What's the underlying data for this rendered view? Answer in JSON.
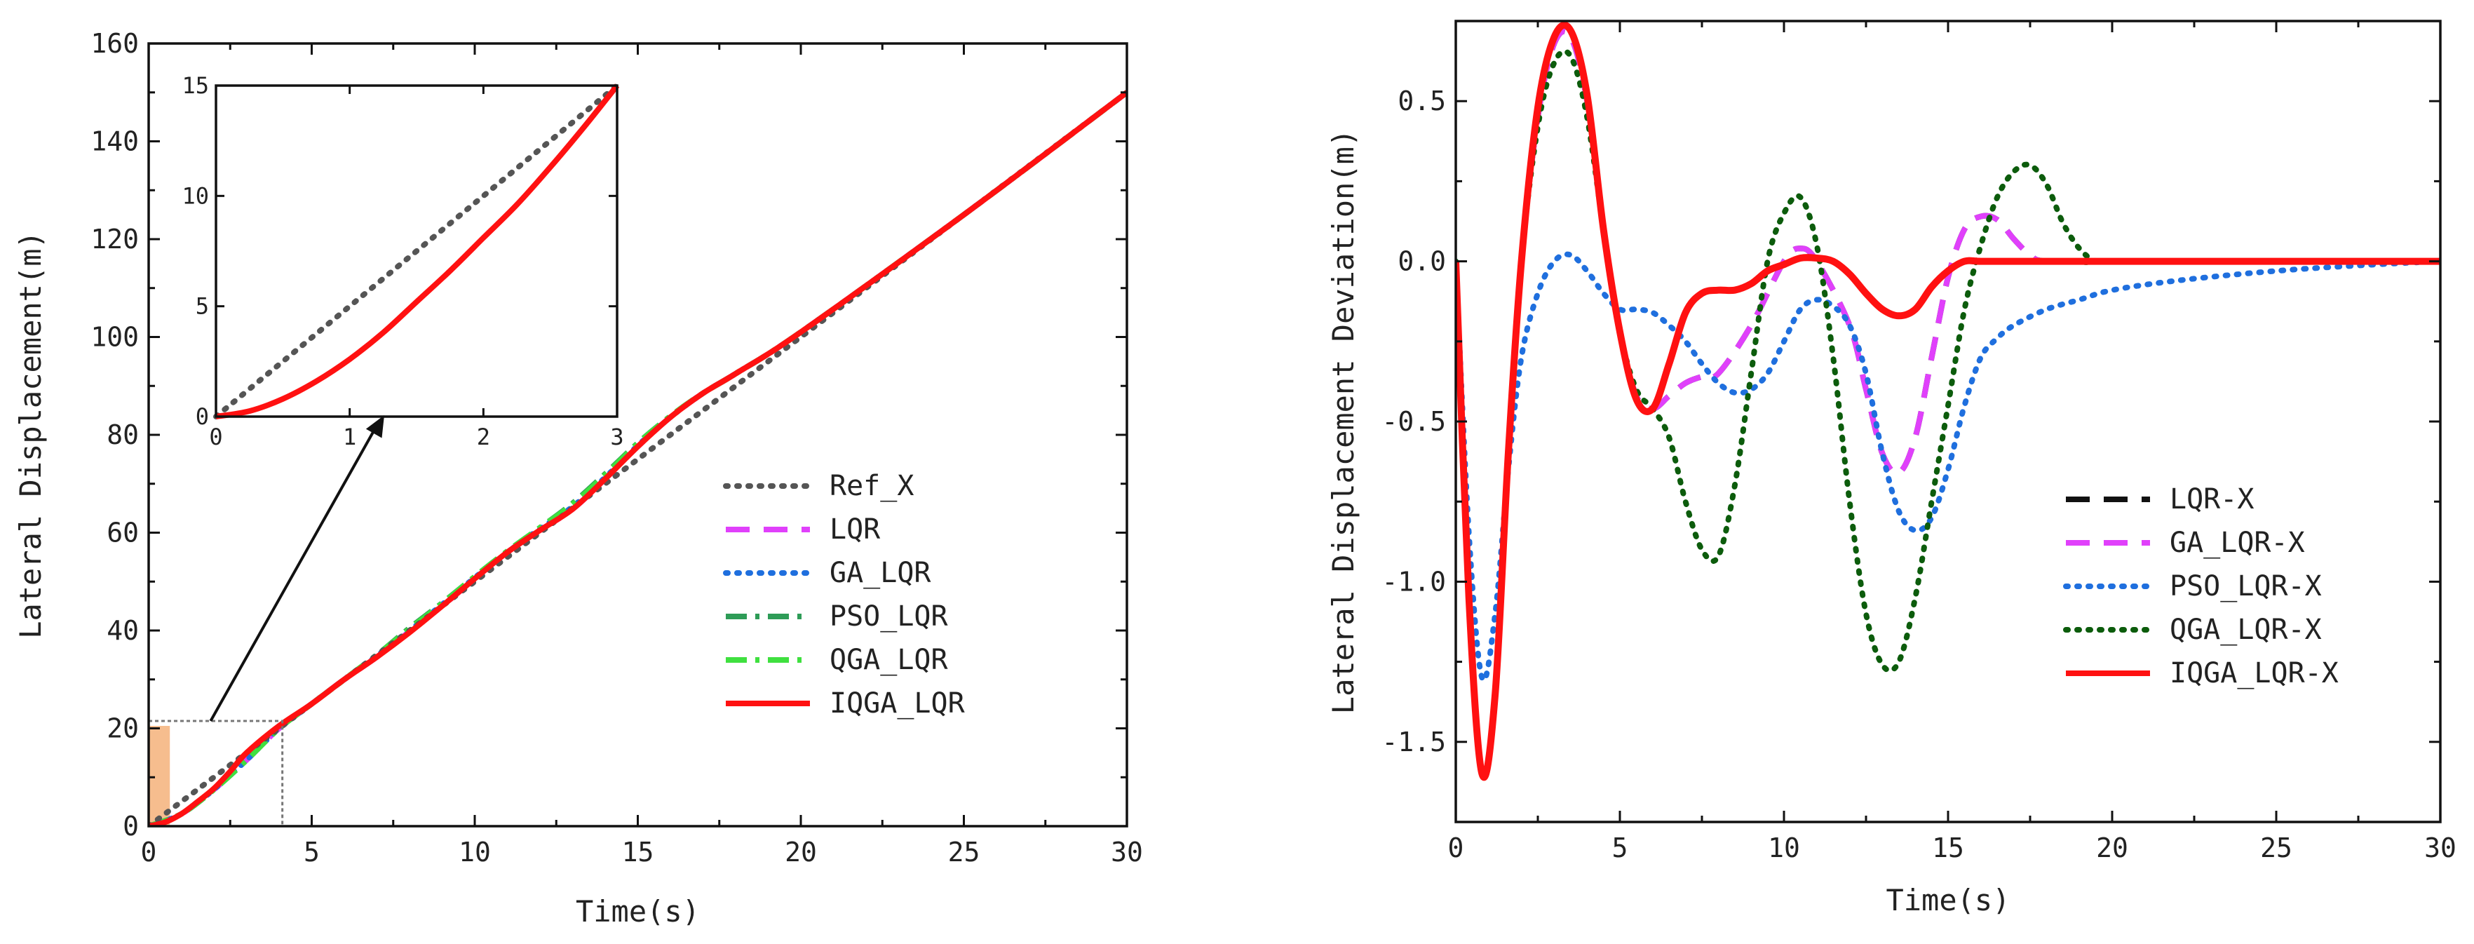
{
  "colors": {
    "ref": "#555555",
    "lqr": "#e040fb",
    "ga": "#1f6fde",
    "pso": "#2e9c57",
    "qga": "#3fe03f",
    "iqga": "#ff1111",
    "lqr_x": "#111111",
    "qga_dark": "#0c5c0c",
    "highlight": "#f4b27a"
  },
  "chart_data": [
    {
      "type": "line",
      "title": "",
      "xlabel": "Time(s)",
      "ylabel": "Lateral Displacement(m)",
      "xlim": [
        0,
        30
      ],
      "ylim": [
        0,
        160
      ],
      "xticks": [
        0,
        5,
        10,
        15,
        20,
        25,
        30
      ],
      "yticks": [
        0,
        20,
        40,
        60,
        80,
        100,
        120,
        140,
        160
      ],
      "legend_position": "center-right",
      "series": [
        {
          "name": "Ref_X",
          "style": "dotted",
          "x": [
            0,
            30
          ],
          "y": [
            0,
            150
          ]
        },
        {
          "name": "LQR",
          "style": "dashed",
          "x": [
            0,
            1,
            2,
            3,
            4,
            5,
            6,
            7,
            8,
            9,
            10,
            11,
            12,
            13,
            14,
            15,
            16,
            17,
            18,
            20,
            25,
            30
          ],
          "y": [
            0,
            2.5,
            7.5,
            13.5,
            20,
            25,
            30,
            34.6,
            39.8,
            45,
            50.6,
            56,
            60.5,
            64.8,
            71,
            77.6,
            83.6,
            88.5,
            92.5,
            101,
            125,
            150
          ]
        },
        {
          "name": "GA_LQR",
          "style": "dotted",
          "x": [
            0,
            1,
            2,
            3,
            4,
            5,
            6,
            7,
            8,
            9,
            10,
            11,
            12,
            13,
            14,
            15,
            16,
            17,
            18,
            20,
            25,
            30
          ],
          "y": [
            0,
            2.5,
            7.5,
            13.5,
            20,
            25,
            30,
            34.8,
            40,
            45.3,
            50.8,
            56,
            60.8,
            65.3,
            71.3,
            77.8,
            83.6,
            88.5,
            92.5,
            101,
            125,
            150
          ]
        },
        {
          "name": "PSO_LQR",
          "style": "dashdot",
          "x": [
            0,
            1,
            2,
            3,
            4,
            5,
            6,
            7,
            8,
            9,
            10,
            11,
            12,
            13,
            14,
            15,
            16,
            17,
            18,
            20,
            25,
            30
          ],
          "y": [
            0,
            2.5,
            7.5,
            13.5,
            20,
            25,
            30,
            35,
            40.5,
            45.6,
            51,
            56.2,
            61,
            66,
            72,
            78.3,
            83.8,
            88.5,
            92.5,
            101,
            125,
            150
          ]
        },
        {
          "name": "QGA_LQR",
          "style": "dashdot",
          "x": [
            0,
            1,
            2,
            3,
            4,
            5,
            6,
            7,
            8,
            9,
            10,
            11,
            12,
            13,
            14,
            15,
            16,
            17,
            18,
            20,
            25,
            30
          ],
          "y": [
            0,
            2.5,
            7.5,
            13.5,
            20,
            25,
            30,
            35,
            40.3,
            45.5,
            51,
            56.2,
            61,
            65.8,
            71.8,
            78.2,
            83.8,
            88.5,
            92.5,
            101,
            125,
            150
          ]
        },
        {
          "name": "IQGA_LQR",
          "style": "solid",
          "x": [
            0,
            0.5,
            1,
            1.5,
            2,
            2.5,
            3,
            4,
            5,
            6,
            7,
            8,
            9,
            10,
            11,
            12,
            13,
            14,
            15,
            16,
            17,
            18,
            20,
            25,
            30
          ],
          "y": [
            0,
            0.8,
            2.5,
            5,
            7.7,
            11.2,
            15,
            20.5,
            25,
            30,
            34.6,
            39.6,
            45,
            50.6,
            56,
            60.5,
            64.8,
            71,
            77.6,
            83.6,
            88.5,
            92.5,
            101,
            125,
            150
          ]
        }
      ],
      "inset": {
        "xlim": [
          0,
          3
        ],
        "ylim": [
          0,
          15
        ],
        "xticks": [
          0,
          1,
          2,
          3
        ],
        "yticks": [
          0,
          5,
          10,
          15
        ],
        "zoom_box": {
          "x": [
            0,
            4.1
          ],
          "y": [
            0,
            21.5
          ]
        },
        "series": [
          {
            "name": "Ref_X",
            "x": [
              0,
              3
            ],
            "y": [
              0,
              15
            ]
          },
          {
            "name": "IQGA_LQR",
            "x": [
              0,
              0.25,
              0.5,
              0.75,
              1,
              1.25,
              1.5,
              1.75,
              2,
              2.25,
              2.5,
              2.75,
              3
            ],
            "y": [
              0,
              0.25,
              0.8,
              1.6,
              2.6,
              3.8,
              5.2,
              6.6,
              8.1,
              9.6,
              11.3,
              13.1,
              15
            ]
          }
        ]
      }
    },
    {
      "type": "line",
      "title": "",
      "xlabel": "Time(s)",
      "ylabel": "Lateral Displacement Deviation(m)",
      "xlim": [
        0,
        30
      ],
      "ylim": [
        -1.75,
        0.75
      ],
      "xticks": [
        0,
        5,
        10,
        15,
        20,
        25,
        30
      ],
      "yticks": [
        -1.5,
        -1.0,
        -0.5,
        0.0,
        0.5
      ],
      "yticklabels": [
        "-1.5",
        "-1.0",
        "-0.5",
        "0.0",
        "0.5"
      ],
      "legend_position": "center-right",
      "series": [
        {
          "name": "LQR-X",
          "style": "dashed",
          "x": [
            0,
            0.4,
            0.8,
            1.2,
            1.6,
            2.0,
            2.5,
            3.0,
            3.5,
            4.0,
            4.5,
            5.0,
            5.5,
            6.0,
            6.5,
            7.0,
            7.5,
            8.0,
            9.0,
            10.0,
            10.5,
            11.0,
            12.0,
            12.5,
            13.0,
            13.5,
            14.0,
            14.5,
            15.0,
            15.5,
            16.0,
            16.5,
            17.0,
            17.5,
            18.0,
            20.0,
            30.0
          ],
          "y": [
            0,
            -1.05,
            -1.6,
            -1.35,
            -0.6,
            0.0,
            0.45,
            0.68,
            0.7,
            0.5,
            0.1,
            -0.22,
            -0.42,
            -0.46,
            -0.42,
            -0.38,
            -0.36,
            -0.35,
            -0.2,
            0.0,
            0.04,
            0.0,
            -0.2,
            -0.4,
            -0.6,
            -0.66,
            -0.55,
            -0.3,
            -0.05,
            0.1,
            0.14,
            0.13,
            0.07,
            0.02,
            0.0,
            0.0,
            0.0
          ]
        },
        {
          "name": "GA_LQR-X",
          "style": "dashed",
          "x": [
            0,
            0.4,
            0.8,
            1.2,
            1.6,
            2.0,
            2.5,
            3.0,
            3.5,
            4.0,
            4.5,
            5.0,
            5.5,
            6.0,
            6.5,
            7.0,
            7.5,
            8.0,
            9.0,
            10.0,
            10.5,
            11.0,
            12.0,
            12.5,
            13.0,
            13.5,
            14.0,
            14.5,
            15.0,
            15.5,
            16.0,
            16.5,
            17.0,
            17.5,
            18.0,
            20.0,
            30.0
          ],
          "y": [
            0,
            -1.05,
            -1.6,
            -1.35,
            -0.6,
            0.0,
            0.45,
            0.68,
            0.7,
            0.5,
            0.1,
            -0.22,
            -0.42,
            -0.46,
            -0.42,
            -0.38,
            -0.36,
            -0.35,
            -0.2,
            0.0,
            0.04,
            0.0,
            -0.2,
            -0.4,
            -0.6,
            -0.66,
            -0.55,
            -0.3,
            -0.05,
            0.1,
            0.14,
            0.13,
            0.07,
            0.02,
            0.0,
            0.0,
            0.0
          ]
        },
        {
          "name": "PSO_LQR-X",
          "style": "dotted",
          "x": [
            0,
            0.4,
            0.8,
            1.2,
            1.6,
            2.0,
            2.5,
            3.0,
            3.5,
            4.0,
            4.5,
            5.0,
            5.5,
            6.0,
            6.5,
            7.0,
            7.5,
            8.0,
            8.5,
            9.0,
            9.5,
            10.0,
            10.5,
            11.0,
            11.5,
            12.0,
            12.5,
            13.0,
            13.5,
            14.0,
            14.5,
            15.0,
            15.5,
            16.0,
            16.5,
            17.0,
            18.0,
            19.0,
            20.0,
            22.0,
            25.0,
            28.0,
            30.0
          ],
          "y": [
            0,
            -0.85,
            -1.3,
            -1.1,
            -0.65,
            -0.3,
            -0.1,
            0.0,
            0.02,
            -0.03,
            -0.1,
            -0.15,
            -0.15,
            -0.16,
            -0.2,
            -0.25,
            -0.32,
            -0.38,
            -0.41,
            -0.4,
            -0.35,
            -0.25,
            -0.15,
            -0.12,
            -0.14,
            -0.2,
            -0.35,
            -0.6,
            -0.78,
            -0.84,
            -0.8,
            -0.65,
            -0.45,
            -0.3,
            -0.24,
            -0.2,
            -0.15,
            -0.12,
            -0.09,
            -0.06,
            -0.03,
            -0.01,
            0.0
          ]
        },
        {
          "name": "QGA_LQR-X",
          "style": "dotted",
          "x": [
            0,
            0.4,
            0.8,
            1.2,
            1.6,
            2.0,
            2.5,
            3.0,
            3.5,
            4.0,
            4.5,
            5.0,
            5.5,
            6.0,
            6.5,
            7.0,
            7.5,
            8.0,
            8.5,
            9.0,
            9.5,
            10.0,
            10.5,
            11.0,
            11.5,
            12.0,
            12.5,
            13.0,
            13.5,
            14.0,
            14.5,
            15.0,
            15.5,
            16.0,
            16.5,
            17.0,
            17.5,
            18.0,
            18.5,
            19.0,
            19.5,
            20.0,
            30.0
          ],
          "y": [
            0,
            -1.05,
            -1.6,
            -1.35,
            -0.6,
            0.0,
            0.42,
            0.62,
            0.64,
            0.45,
            0.1,
            -0.22,
            -0.4,
            -0.46,
            -0.55,
            -0.75,
            -0.9,
            -0.92,
            -0.7,
            -0.35,
            0.0,
            0.15,
            0.2,
            0.05,
            -0.3,
            -0.75,
            -1.1,
            -1.26,
            -1.25,
            -1.05,
            -0.75,
            -0.45,
            -0.15,
            0.05,
            0.2,
            0.28,
            0.3,
            0.24,
            0.12,
            0.04,
            0.0,
            0.0,
            0.0
          ]
        },
        {
          "name": "IQGA_LQR-X",
          "style": "solid",
          "x": [
            0,
            0.4,
            0.8,
            1.2,
            1.6,
            2.0,
            2.5,
            3.0,
            3.5,
            4.0,
            4.5,
            5.0,
            5.5,
            6.0,
            6.5,
            7.0,
            7.5,
            8.0,
            8.5,
            9.0,
            9.5,
            10.0,
            10.5,
            11.0,
            11.5,
            12.0,
            12.5,
            13.0,
            13.5,
            14.0,
            14.5,
            15.0,
            15.5,
            16.0,
            17.0,
            18.0,
            20.0,
            30.0
          ],
          "y": [
            0,
            -1.05,
            -1.6,
            -1.35,
            -0.6,
            0.0,
            0.48,
            0.7,
            0.72,
            0.52,
            0.1,
            -0.22,
            -0.43,
            -0.46,
            -0.32,
            -0.16,
            -0.1,
            -0.09,
            -0.09,
            -0.07,
            -0.03,
            -0.01,
            0.01,
            0.01,
            0.0,
            -0.04,
            -0.1,
            -0.15,
            -0.17,
            -0.15,
            -0.08,
            -0.03,
            0.0,
            0.0,
            0.0,
            0.0,
            0.0,
            0.0
          ]
        }
      ]
    }
  ]
}
